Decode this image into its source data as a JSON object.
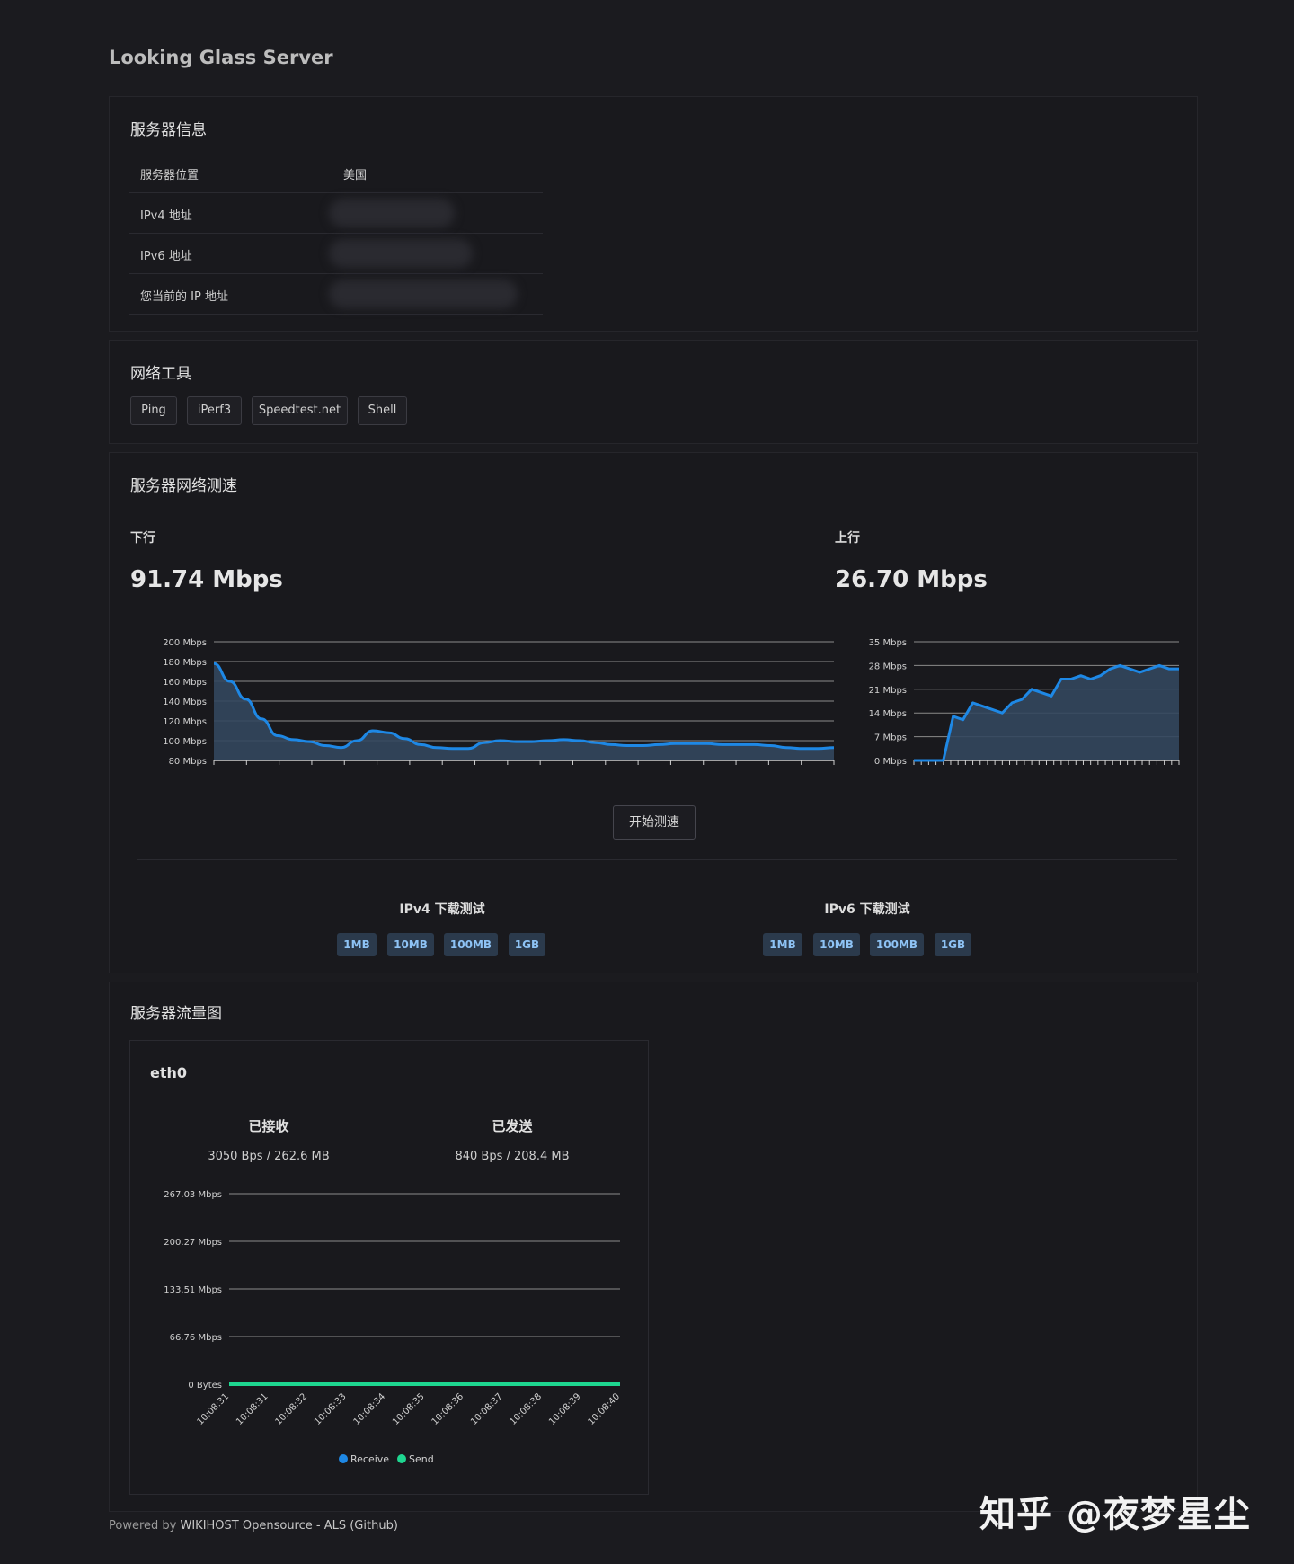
{
  "app": {
    "title": "Looking Glass Server"
  },
  "server_info": {
    "title": "服务器信息",
    "rows": [
      {
        "label": "服务器位置",
        "value": "美国"
      },
      {
        "label": "IPv4 地址",
        "value": ""
      },
      {
        "label": "IPv6 地址",
        "value": ""
      },
      {
        "label": "您当前的 IP 地址",
        "value": ""
      }
    ]
  },
  "network_tools": {
    "title": "网络工具",
    "buttons": [
      "Ping",
      "iPerf3",
      "Speedtest.net",
      "Shell"
    ]
  },
  "speed_test": {
    "title": "服务器网络测速",
    "download": {
      "label": "下行",
      "value": "91.74 Mbps"
    },
    "upload": {
      "label": "上行",
      "value": "26.70 Mbps"
    },
    "start_button": "开始测速",
    "ipv4": {
      "title": "IPv4 下载测试",
      "buttons": [
        "1MB",
        "10MB",
        "100MB",
        "1GB"
      ]
    },
    "ipv6": {
      "title": "IPv6 下载测试",
      "buttons": [
        "1MB",
        "10MB",
        "100MB",
        "1GB"
      ]
    }
  },
  "traffic": {
    "title": "服务器流量图",
    "interface": "eth0",
    "received_label": "已接收",
    "received_value": "3050 Bps / 262.6 MB",
    "sent_label": "已发送",
    "sent_value": "840 Bps / 208.4 MB"
  },
  "footer": {
    "prefix": "Powered by ",
    "link": "WIKIHOST Opensource - ALS (Github)"
  },
  "watermark": "知乎 @夜梦星尘",
  "colors": {
    "line": "#1e88e5",
    "area": "#33475e",
    "send": "#1ed690",
    "grid": "#8a8a8a"
  },
  "chart_data": [
    {
      "type": "area",
      "name": "download",
      "y_ticks": [
        "200 Mbps",
        "180 Mbps",
        "160 Mbps",
        "140 Mbps",
        "120 Mbps",
        "100 Mbps",
        "80 Mbps"
      ],
      "ylim": [
        80,
        200
      ],
      "values": [
        178,
        160,
        142,
        122,
        105,
        101,
        99,
        95,
        93,
        100,
        110,
        108,
        102,
        96,
        93,
        92,
        92,
        98,
        100,
        99,
        99,
        100,
        101,
        100,
        98,
        96,
        95,
        95,
        96,
        97,
        97,
        97,
        96,
        96,
        96,
        95,
        93,
        92,
        92,
        93
      ]
    },
    {
      "type": "area",
      "name": "upload",
      "y_ticks": [
        "35 Mbps",
        "28 Mbps",
        "21 Mbps",
        "14 Mbps",
        "7 Mbps",
        "0 Mbps"
      ],
      "ylim": [
        0,
        35
      ],
      "values": [
        0,
        0,
        0,
        0,
        13,
        12,
        17,
        16,
        15,
        14,
        17,
        18,
        21,
        20,
        19,
        24,
        24,
        25,
        24,
        25,
        27,
        28,
        27,
        26,
        27,
        28,
        27,
        27
      ]
    },
    {
      "type": "line",
      "name": "traffic",
      "y_ticks": [
        "267.03 Mbps",
        "200.27 Mbps",
        "133.51 Mbps",
        "66.76 Mbps",
        "0 Bytes"
      ],
      "x": [
        "10:08:31",
        "10:08:31",
        "10:08:32",
        "10:08:33",
        "10:08:34",
        "10:08:35",
        "10:08:36",
        "10:08:37",
        "10:08:38",
        "10:08:39",
        "10:08:40"
      ],
      "series": [
        {
          "name": "Receive",
          "values": [
            0,
            0,
            0,
            0,
            0,
            0,
            0,
            0,
            0,
            0,
            0
          ]
        },
        {
          "name": "Send",
          "values": [
            0,
            0,
            0,
            0,
            0,
            0,
            0,
            0,
            0,
            0,
            0
          ]
        }
      ]
    }
  ]
}
